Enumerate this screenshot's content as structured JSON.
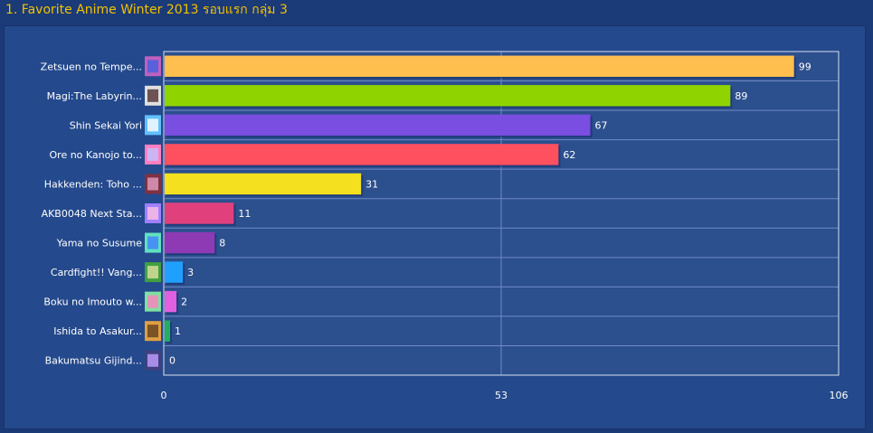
{
  "title": "1. Favorite Anime Winter 2013 รอบแรก กลุ่ม 3",
  "chart_data": {
    "type": "bar",
    "orientation": "horizontal",
    "title": "1. Favorite Anime Winter 2013 รอบแรก กลุ่ม 3",
    "xlabel": "",
    "ylabel": "",
    "xlim": [
      0,
      106
    ],
    "ticks": [
      "0",
      "53",
      "106"
    ],
    "tick_values": [
      0,
      53,
      106
    ],
    "grid": true,
    "categories": [
      "Zetsuen no Tempe...",
      "Magi:The Labyrin...",
      "Shin Sekai Yori",
      "Ore no Kanojo to...",
      "Hakkenden: Toho ...",
      "AKB0048 Next Sta...",
      "Yama no Susume",
      "Cardfight!! Vang...",
      "Boku no Imouto w...",
      "Ishida to Asakur...",
      "Bakumatsu Gijind..."
    ],
    "values": [
      99,
      89,
      67,
      62,
      31,
      11,
      8,
      3,
      2,
      1,
      0
    ],
    "value_labels": [
      "99",
      "89",
      "67",
      "62",
      "31",
      "11",
      "8",
      "3",
      "2",
      "1",
      "0"
    ],
    "colors": [
      "#ffbf4f",
      "#8fd400",
      "#7a4ee0",
      "#ff5060",
      "#f5e020",
      "#e0407c",
      "#8e3ab4",
      "#1fa0ff",
      "#e060e0",
      "#20b060",
      "#ffffff"
    ],
    "thumbnail_colors": [
      [
        "#c060c0",
        "#4060e0"
      ],
      [
        "#e0e0e0",
        "#503030"
      ],
      [
        "#60c0ff",
        "#ffffff"
      ],
      [
        "#ff80c0",
        "#c0c0ff"
      ],
      [
        "#803040",
        "#e0a0c0"
      ],
      [
        "#a080ff",
        "#ffc0e0"
      ],
      [
        "#60e0c0",
        "#4080ff"
      ],
      [
        "#40a040",
        "#e0e0a0"
      ],
      [
        "#80e0a0",
        "#ff80c0"
      ],
      [
        "#e0a040",
        "#604020"
      ],
      [
        "#404080",
        "#c0a0ff"
      ]
    ]
  }
}
